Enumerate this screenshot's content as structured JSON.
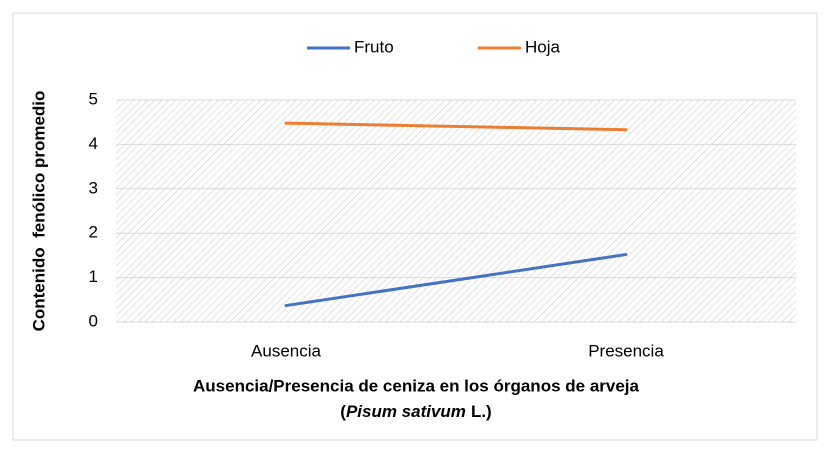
{
  "chart_data": {
    "type": "line",
    "y_label": "Contenido  fenólico promedio",
    "x_label": [
      "Ausencia/Presencia de ceniza en los órganos de arveja",
      "(",
      "Pisum sativum",
      "L.)"
    ],
    "categories": [
      "Ausencia",
      "Presencia"
    ],
    "series": [
      {
        "name": "Fruto",
        "color": "#4472c4",
        "values": [
          0.37,
          1.52
        ]
      },
      {
        "name": "Hoja",
        "color": "#ed7d31",
        "values": [
          4.48,
          4.33
        ]
      }
    ],
    "ylim": [
      0,
      5
    ],
    "yticks": [
      0,
      1,
      2,
      3,
      4,
      5
    ],
    "grid": true,
    "legend": "top"
  }
}
